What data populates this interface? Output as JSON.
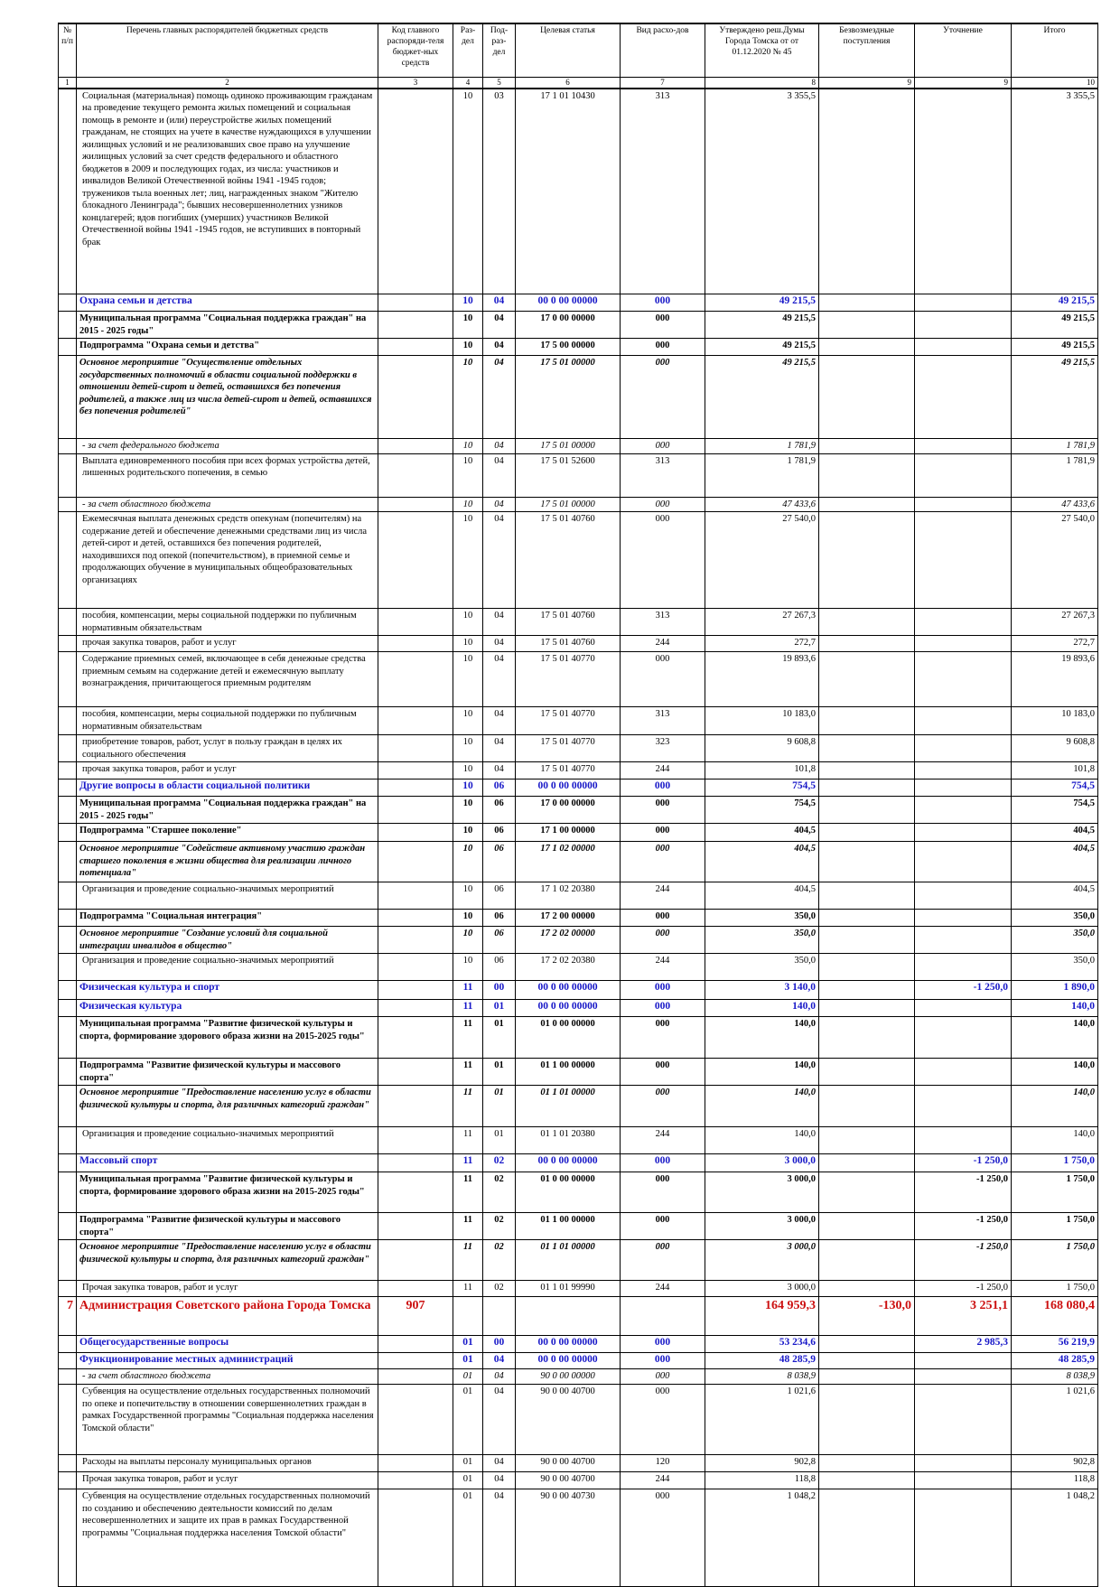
{
  "table": {
    "header": [
      "№ п/п",
      "Перечень главных распорядителей бюджетных средств",
      "Код главного распоряди-теля бюджет-ных средств",
      "Раз-дел",
      "Под-раз-дел",
      "Целевая статья",
      "Вид расхо-дов",
      "Утверждено реш.Думы Города Томска от от 01.12.2020 № 45",
      "Безвозмездные поступления",
      "Уточнение",
      "Итого"
    ],
    "column_numbers": [
      "1",
      "2",
      "3",
      "4",
      "5",
      "6",
      "7",
      "8",
      "9",
      "9",
      "10"
    ],
    "rows": [
      [
        null,
        "Социальная (материальная) помощь одиноко проживающим гражданам на проведение текущего ремонта жилых помещений и социальная помощь в ремонте и (или) переустройстве жилых помещений гражданам, не стоящих на учете в качестве нуждающихся в улучшении жилищных условий и не реализовавших свое право на улучшение жилищных условий за счет средств федерального и областного бюджетов в 2009 и последующих годах, из числа: участников и инвалидов Великой Отечественной войны 1941 -1945 годов; тружеников тыла военных лет; лиц, награжденных знаком \"Жителю блокадного Ленинграда\"; бывших несовершеннолетних узников концлагерей; вдов погибших (умерших) участников Великой Отечественной войны 1941 -1945 годов, не вступивших в повторный брак",
        null,
        "10",
        "03",
        "17 1 01 10430",
        "313",
        "3 355,5",
        null,
        null,
        "3 355,5"
      ],
      [
        null,
        "Охрана семьи и детства",
        null,
        "10",
        "04",
        "00 0 00 00000",
        "000",
        "49 215,5",
        null,
        null,
        "49 215,5"
      ],
      [
        null,
        "Муниципальная программа \"Социальная поддержка граждан\" на 2015 - 2025 годы\"",
        null,
        "10",
        "04",
        "17 0 00 00000",
        "000",
        "49 215,5",
        null,
        null,
        "49 215,5"
      ],
      [
        null,
        "Подпрограмма \"Охрана семьи и детства\"",
        null,
        "10",
        "04",
        "17 5 00 00000",
        "000",
        "49 215,5",
        null,
        null,
        "49 215,5"
      ],
      [
        null,
        "Основное мероприятие \"Осуществление отдельных государственных полномочий в области социальной поддержки в отношении детей-сирот и детей, оставшихся без попечения родителей, а также лиц из числа детей-сирот и детей, оставшихся без попечения родителей\"",
        null,
        "10",
        "04",
        "17 5 01 00000",
        "000",
        "49 215,5",
        null,
        null,
        "49 215,5"
      ],
      [
        null,
        "- за счет федерального бюджета",
        null,
        "10",
        "04",
        "17 5 01 00000",
        "000",
        "1 781,9",
        null,
        null,
        "1 781,9"
      ],
      [
        null,
        "Выплата единовременного пособия при всех формах устройства детей, лишенных родительского попечения, в семью",
        null,
        "10",
        "04",
        "17 5 01 52600",
        "313",
        "1 781,9",
        null,
        null,
        "1 781,9"
      ],
      [
        null,
        "- за счет областного бюджета",
        null,
        "10",
        "04",
        "17 5 01 00000",
        "000",
        "47 433,6",
        null,
        null,
        "47 433,6"
      ],
      [
        null,
        "Ежемесячная выплата денежных средств опекунам (попечителям) на содержание детей и обеспечение денежными средствами лиц из числа детей-сирот и детей, оставшихся без попечения родителей, находившихся под опекой (попечительством), в приемной семье и продолжающих обучение в муниципальных общеобразовательных организациях",
        null,
        "10",
        "04",
        "17 5 01 40760",
        "000",
        "27 540,0",
        null,
        null,
        "27 540,0"
      ],
      [
        null,
        "пособия, компенсации, меры социальной поддержки по публичным нормативным обязательствам",
        null,
        "10",
        "04",
        "17 5 01 40760",
        "313",
        "27 267,3",
        null,
        null,
        "27 267,3"
      ],
      [
        null,
        "прочая закупка товаров, работ и услуг",
        null,
        "10",
        "04",
        "17 5 01 40760",
        "244",
        "272,7",
        null,
        null,
        "272,7"
      ],
      [
        null,
        "Содержание приемных семей, включающее в себя денежные средства приемным семьям на содержание детей и ежемесячную выплату вознаграждения, причитающегося приемным родителям",
        null,
        "10",
        "04",
        "17 5 01 40770",
        "000",
        "19 893,6",
        null,
        null,
        "19 893,6"
      ],
      [
        null,
        "пособия, компенсации, меры социальной поддержки по публичным нормативным обязательствам",
        null,
        "10",
        "04",
        "17 5 01 40770",
        "313",
        "10 183,0",
        null,
        null,
        "10 183,0"
      ],
      [
        null,
        "приобретение товаров, работ, услуг в пользу граждан в целях их социального обеспечения",
        null,
        "10",
        "04",
        "17 5 01 40770",
        "323",
        "9 608,8",
        null,
        null,
        "9 608,8"
      ],
      [
        null,
        "прочая закупка товаров, работ и услуг",
        null,
        "10",
        "04",
        "17 5 01 40770",
        "244",
        "101,8",
        null,
        null,
        "101,8"
      ],
      [
        null,
        "Другие вопросы в области социальной политики",
        null,
        "10",
        "06",
        "00 0 00 00000",
        "000",
        "754,5",
        null,
        null,
        "754,5"
      ],
      [
        null,
        "Муниципальная программа \"Социальная поддержка граждан\" на 2015 - 2025 годы\"",
        null,
        "10",
        "06",
        "17 0 00 00000",
        "000",
        "754,5",
        null,
        null,
        "754,5"
      ],
      [
        null,
        "Подпрограмма \"Старшее поколение\"",
        null,
        "10",
        "06",
        "17 1 00 00000",
        "000",
        "404,5",
        null,
        null,
        "404,5"
      ],
      [
        null,
        "Основное мероприятие \"Содействие активному участию граждан старшего поколения в жизни общества для реализации личного потенциала\"",
        null,
        "10",
        "06",
        "17 1 02 00000",
        "000",
        "404,5",
        null,
        null,
        "404,5"
      ],
      [
        null,
        "Организация и проведение социально-значимых мероприятий",
        null,
        "10",
        "06",
        "17 1 02 20380",
        "244",
        "404,5",
        null,
        null,
        "404,5"
      ],
      [
        null,
        "Подпрограмма \"Социальная интеграция\"",
        null,
        "10",
        "06",
        "17 2 00 00000",
        "000",
        "350,0",
        null,
        null,
        "350,0"
      ],
      [
        null,
        "Основное мероприятие \"Создание условий для социальной интеграции инвалидов в общество\"",
        null,
        "10",
        "06",
        "17 2 02 00000",
        "000",
        "350,0",
        null,
        null,
        "350,0"
      ],
      [
        null,
        "Организация и проведение социально-значимых мероприятий",
        null,
        "10",
        "06",
        "17 2 02 20380",
        "244",
        "350,0",
        null,
        null,
        "350,0"
      ],
      [
        null,
        "Физическая культура и спорт",
        null,
        "11",
        "00",
        "00 0 00 00000",
        "000",
        "3 140,0",
        null,
        "-1 250,0",
        "1 890,0"
      ],
      [
        null,
        "Физическая культура",
        null,
        "11",
        "01",
        "00 0 00 00000",
        "000",
        "140,0",
        null,
        null,
        "140,0"
      ],
      [
        null,
        "Муниципальная программа \"Развитие физической культуры и спорта, формирование здорового образа жизни на 2015-2025 годы\"",
        null,
        "11",
        "01",
        "01 0 00 00000",
        "000",
        "140,0",
        null,
        null,
        "140,0"
      ],
      [
        null,
        "Подпрограмма \"Развитие физической культуры и массового спорта\"",
        null,
        "11",
        "01",
        "01 1 00 00000",
        "000",
        "140,0",
        null,
        null,
        "140,0"
      ],
      [
        null,
        "Основное мероприятие \"Предоставление населению услуг в области физической культуры и спорта, для различных категорий граждан\"",
        null,
        "11",
        "01",
        "01 1 01 00000",
        "000",
        "140,0",
        null,
        null,
        "140,0"
      ],
      [
        null,
        "Организация и проведение социально-значимых мероприятий",
        null,
        "11",
        "01",
        "01 1 01 20380",
        "244",
        "140,0",
        null,
        null,
        "140,0"
      ],
      [
        null,
        "Массовый спорт",
        null,
        "11",
        "02",
        "00 0 00 00000",
        "000",
        "3 000,0",
        null,
        "-1 250,0",
        "1 750,0"
      ],
      [
        null,
        "Муниципальная программа \"Развитие физической культуры и спорта, формирование здорового образа жизни на 2015-2025 годы\"",
        null,
        "11",
        "02",
        "01 0 00 00000",
        "000",
        "3 000,0",
        null,
        "-1 250,0",
        "1 750,0"
      ],
      [
        null,
        "Подпрограмма \"Развитие физической культуры и массового спорта\"",
        null,
        "11",
        "02",
        "01 1 00 00000",
        "000",
        "3 000,0",
        null,
        "-1 250,0",
        "1 750,0"
      ],
      [
        null,
        "Основное мероприятие \"Предоставление населению услуг в области физической культуры и спорта, для различных категорий граждан\"",
        null,
        "11",
        "02",
        "01 1 01 00000",
        "000",
        "3 000,0",
        null,
        "-1 250,0",
        "1 750,0"
      ],
      [
        null,
        "Прочая закупка товаров, работ и услуг",
        null,
        "11",
        "02",
        "01 1 01 99990",
        "244",
        "3 000,0",
        null,
        "-1 250,0",
        "1 750,0"
      ],
      [
        "7",
        "Администрация Советского района Города Томска",
        "907",
        null,
        null,
        null,
        null,
        "164 959,3",
        "-130,0",
        "3 251,1",
        "168 080,4"
      ],
      [
        null,
        "Общегосударственные вопросы",
        null,
        "01",
        "00",
        "00 0 00 00000",
        "000",
        "53 234,6",
        null,
        "2 985,3",
        "56 219,9"
      ],
      [
        null,
        "Функционирование местных администраций",
        null,
        "01",
        "04",
        "00 0 00 00000",
        "000",
        "48 285,9",
        null,
        null,
        "48 285,9"
      ],
      [
        null,
        "- за счет областного бюджета",
        null,
        "01",
        "04",
        "90 0 00 00000",
        "000",
        "8 038,9",
        null,
        null,
        "8 038,9"
      ],
      [
        null,
        "Субвенция на осуществление отдельных государственных полномочий по опеке и попечительству в отношении совершеннолетних граждан в рамках Государственной программы \"Социальная поддержка населения Томской области\"",
        null,
        "01",
        "04",
        "90 0 00 40700",
        "000",
        "1 021,6",
        null,
        null,
        "1 021,6"
      ],
      [
        null,
        "Расходы на выплаты персоналу муниципальных органов",
        null,
        "01",
        "04",
        "90 0 00 40700",
        "120",
        "902,8",
        null,
        null,
        "902,8"
      ],
      [
        null,
        "Прочая закупка товаров, работ и услуг",
        null,
        "01",
        "04",
        "90 0 00 40700",
        "244",
        "118,8",
        null,
        null,
        "118,8"
      ],
      [
        null,
        "Субвенция на осуществление отдельных государственных полномочий по созданию и обеспечению деятельности комиссий по делам несовершеннолетних и защите их прав в рамках Государственной программы \"Социальная поддержка населения Томской области\"",
        null,
        "01",
        "04",
        "90 0 00 40730",
        "000",
        "1 048,2",
        null,
        null,
        "1 048,2"
      ]
    ]
  }
}
